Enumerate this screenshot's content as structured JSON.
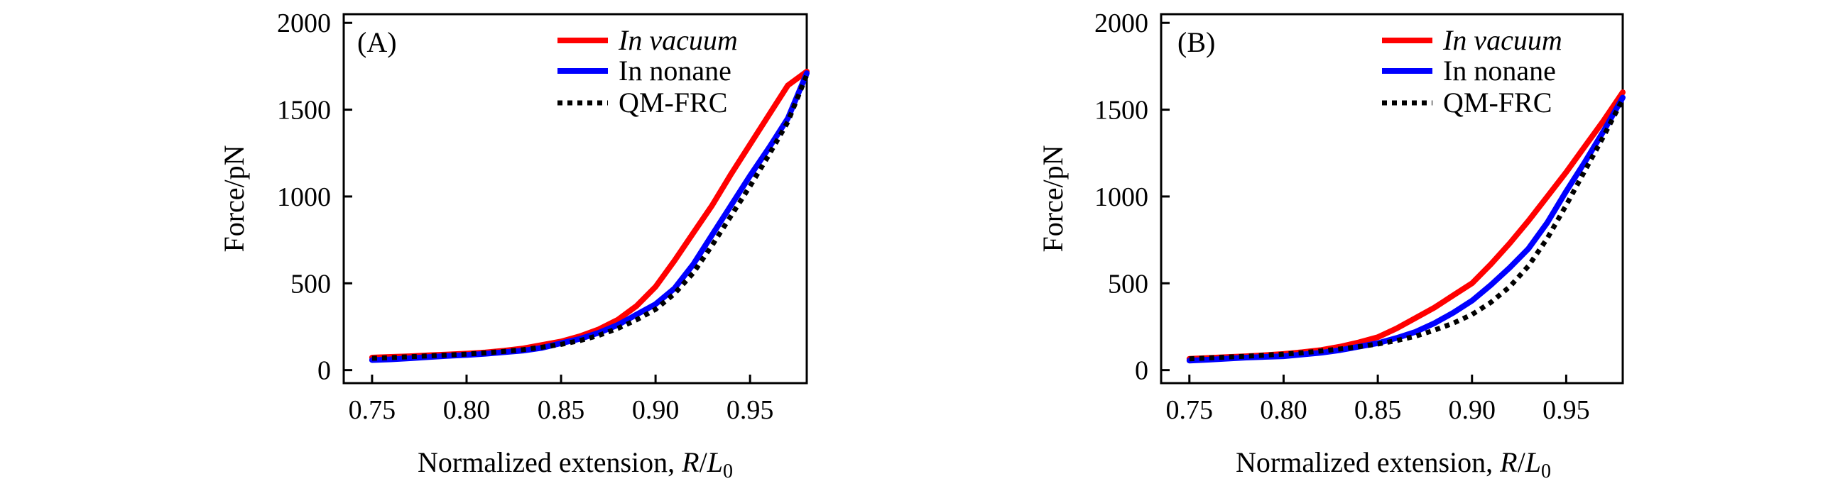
{
  "chart_data": [
    {
      "type": "line",
      "panel_label": "(A)",
      "xlabel_prefix": "Normalized extension, ",
      "xlabel_R": "R",
      "xlabel_slash": "/",
      "xlabel_L": "L",
      "xlabel_sub": "0",
      "ylabel": "Force/pN",
      "xlim": [
        0.735,
        0.98
      ],
      "ylim": [
        -75,
        2050
      ],
      "xticks": [
        0.75,
        0.8,
        0.85,
        0.9,
        0.95
      ],
      "xtick_labels": [
        "0.75",
        "0.80",
        "0.85",
        "0.90",
        "0.95"
      ],
      "yticks": [
        0,
        500,
        1000,
        1500,
        2000
      ],
      "ytick_labels": [
        "0",
        "500",
        "1000",
        "1500",
        "2000"
      ],
      "legend_position": "top-right",
      "series": [
        {
          "name": "In vacuum",
          "color": "#ff0000",
          "style": "solid",
          "italic": true,
          "x": [
            0.75,
            0.76,
            0.77,
            0.78,
            0.79,
            0.8,
            0.81,
            0.82,
            0.83,
            0.84,
            0.85,
            0.86,
            0.87,
            0.88,
            0.89,
            0.9,
            0.91,
            0.92,
            0.93,
            0.94,
            0.95,
            0.96,
            0.97,
            0.98
          ],
          "values": [
            72,
            76,
            80,
            85,
            90,
            95,
            102,
            112,
            125,
            145,
            165,
            195,
            235,
            290,
            370,
            480,
            630,
            790,
            950,
            1130,
            1300,
            1470,
            1640,
            1720
          ]
        },
        {
          "name": "In nonane",
          "color": "#0000ff",
          "style": "solid",
          "italic": false,
          "x": [
            0.75,
            0.76,
            0.77,
            0.78,
            0.79,
            0.8,
            0.81,
            0.82,
            0.83,
            0.84,
            0.85,
            0.86,
            0.87,
            0.88,
            0.89,
            0.9,
            0.91,
            0.92,
            0.93,
            0.94,
            0.95,
            0.96,
            0.97,
            0.98
          ],
          "values": [
            58,
            62,
            68,
            75,
            82,
            87,
            94,
            103,
            112,
            128,
            155,
            180,
            215,
            260,
            320,
            380,
            470,
            610,
            780,
            950,
            1120,
            1280,
            1450,
            1710
          ]
        },
        {
          "name": "QM-FRC",
          "color": "#000000",
          "style": "dotted",
          "italic": false,
          "x": [
            0.75,
            0.76,
            0.77,
            0.78,
            0.79,
            0.8,
            0.81,
            0.82,
            0.83,
            0.84,
            0.85,
            0.86,
            0.87,
            0.88,
            0.89,
            0.9,
            0.91,
            0.92,
            0.93,
            0.94,
            0.95,
            0.96,
            0.97,
            0.98
          ],
          "values": [
            68,
            72,
            77,
            82,
            87,
            92,
            99,
            108,
            118,
            132,
            148,
            170,
            200,
            240,
            290,
            350,
            440,
            560,
            720,
            890,
            1060,
            1240,
            1430,
            1700
          ]
        }
      ]
    },
    {
      "type": "line",
      "panel_label": "(B)",
      "xlabel_prefix": "Normalized extension, ",
      "xlabel_R": "R",
      "xlabel_slash": "/",
      "xlabel_L": "L",
      "xlabel_sub": "0",
      "ylabel": "Force/pN",
      "xlim": [
        0.735,
        0.98
      ],
      "ylim": [
        -75,
        2050
      ],
      "xticks": [
        0.75,
        0.8,
        0.85,
        0.9,
        0.95
      ],
      "xtick_labels": [
        "0.75",
        "0.80",
        "0.85",
        "0.90",
        "0.95"
      ],
      "yticks": [
        0,
        500,
        1000,
        1500,
        2000
      ],
      "ytick_labels": [
        "0",
        "500",
        "1000",
        "1500",
        "2000"
      ],
      "legend_position": "top-right",
      "series": [
        {
          "name": "In vacuum",
          "color": "#ff0000",
          "style": "solid",
          "italic": true,
          "x": [
            0.75,
            0.76,
            0.77,
            0.78,
            0.79,
            0.8,
            0.81,
            0.82,
            0.83,
            0.84,
            0.85,
            0.86,
            0.87,
            0.88,
            0.89,
            0.9,
            0.91,
            0.92,
            0.93,
            0.94,
            0.95,
            0.96,
            0.97,
            0.98
          ],
          "values": [
            65,
            70,
            75,
            80,
            86,
            93,
            103,
            116,
            135,
            160,
            190,
            240,
            300,
            360,
            430,
            500,
            610,
            730,
            860,
            1000,
            1140,
            1290,
            1440,
            1600
          ]
        },
        {
          "name": "In nonane",
          "color": "#0000ff",
          "style": "solid",
          "italic": false,
          "x": [
            0.75,
            0.76,
            0.77,
            0.78,
            0.79,
            0.8,
            0.81,
            0.82,
            0.83,
            0.84,
            0.85,
            0.86,
            0.87,
            0.88,
            0.89,
            0.9,
            0.91,
            0.92,
            0.93,
            0.94,
            0.95,
            0.96,
            0.97,
            0.98
          ],
          "values": [
            55,
            60,
            66,
            72,
            76,
            80,
            90,
            100,
            115,
            135,
            155,
            185,
            220,
            270,
            330,
            400,
            490,
            590,
            700,
            850,
            1030,
            1200,
            1380,
            1570
          ]
        },
        {
          "name": "QM-FRC",
          "color": "#000000",
          "style": "dotted",
          "italic": false,
          "x": [
            0.75,
            0.76,
            0.77,
            0.78,
            0.79,
            0.8,
            0.81,
            0.82,
            0.83,
            0.84,
            0.85,
            0.86,
            0.87,
            0.88,
            0.89,
            0.9,
            0.91,
            0.92,
            0.93,
            0.94,
            0.95,
            0.96,
            0.97,
            0.98
          ],
          "values": [
            65,
            70,
            75,
            80,
            86,
            92,
            100,
            110,
            122,
            135,
            150,
            170,
            195,
            230,
            270,
            320,
            390,
            480,
            600,
            760,
            950,
            1150,
            1350,
            1560
          ]
        }
      ]
    }
  ]
}
